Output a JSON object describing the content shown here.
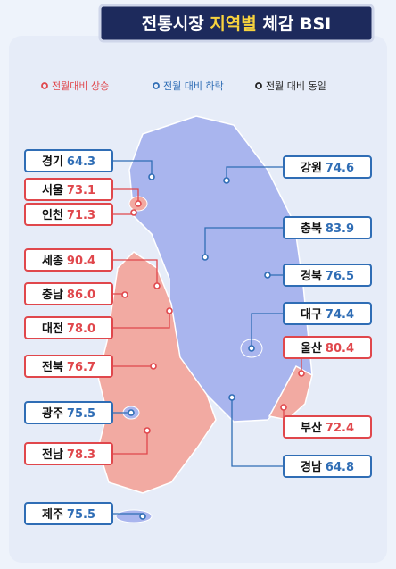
{
  "header": {
    "title": [
      "전통시장 ",
      "지역별",
      " 체감 BSI"
    ]
  },
  "legend": [
    {
      "label": "전월대비 상승",
      "color": "#e0474c",
      "regions": [
        {
          "name": "서울",
          "value": "73.1"
        },
        {
          "name": "인천",
          "value": "71.3"
        },
        {
          "name": "세종",
          "value": "90.4"
        },
        {
          "name": "충남",
          "value": "86.0"
        },
        {
          "name": "대전",
          "value": "78.0"
        },
        {
          "name": "전북",
          "value": "76.7"
        },
        {
          "name": "전남",
          "value": "78.3"
        },
        {
          "name": "울산",
          "value": "80.4"
        },
        {
          "name": "부산",
          "value": "72.4"
        }
      ]
    },
    {
      "label": "전월 대비 하락",
      "color": "#2f6db5",
      "regions": [
        {
          "name": "경기",
          "value": "64.3"
        },
        {
          "name": "강원",
          "value": "74.6"
        },
        {
          "name": "충북",
          "value": "83.9"
        },
        {
          "name": "경북",
          "value": "76.5"
        },
        {
          "name": "대구",
          "value": "74.4"
        },
        {
          "name": "광주",
          "value": "75.5"
        },
        {
          "name": "경남",
          "value": "64.8"
        },
        {
          "name": "제주",
          "value": "75.5"
        }
      ]
    },
    {
      "label": "전월 대비 동일",
      "color": "#222222",
      "regions": []
    }
  ]
}
